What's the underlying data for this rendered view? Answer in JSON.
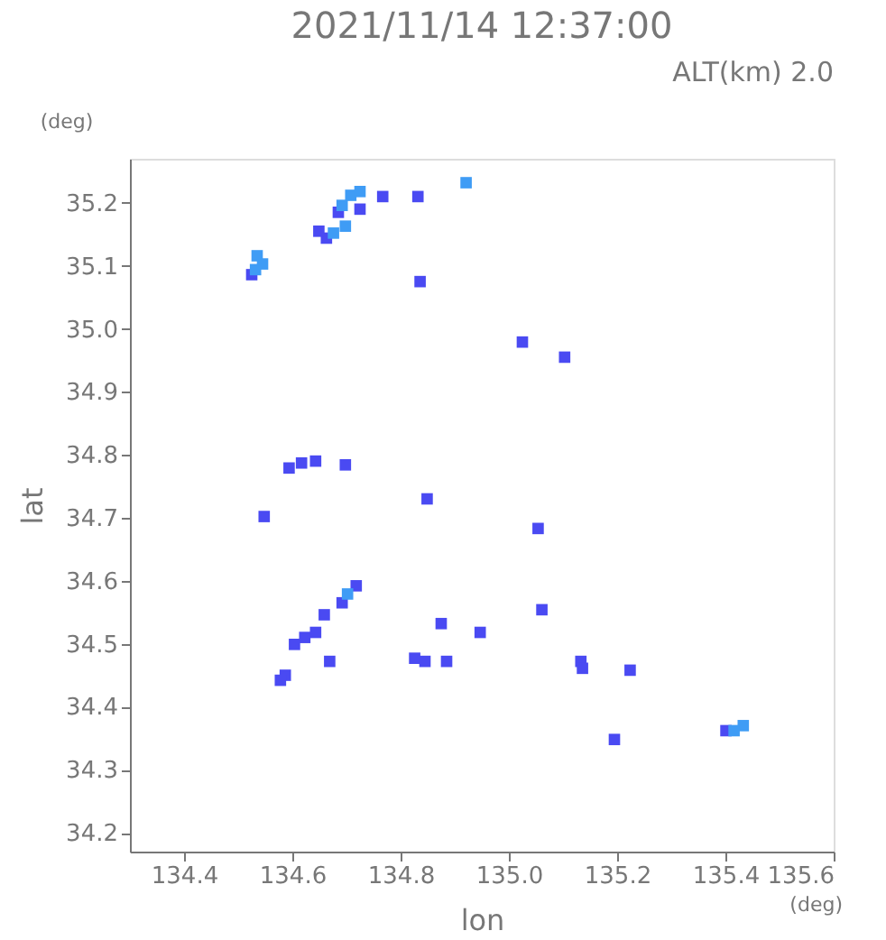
{
  "chart_data": {
    "type": "scatter",
    "title": "2021/11/14 12:37:00",
    "xlabel": "lon",
    "ylabel": "lat",
    "annotations": [
      "ALT(km) 2.0",
      "(deg)",
      "(deg)"
    ],
    "xlim": [
      134.3,
      135.6
    ],
    "xticks": [
      134.4,
      134.6,
      134.8,
      {
        "value": 135,
        "label": "135.0"
      },
      135.2,
      135.4,
      135.6
    ],
    "ylim": [
      34.17,
      35.27
    ],
    "yticks": [
      34.2,
      34.3,
      34.4,
      34.5,
      34.6,
      34.7,
      34.8,
      34.9,
      {
        "value": 35,
        "label": "35.0"
      },
      35.1,
      35.2
    ],
    "grid": false,
    "legend": false,
    "marker": "square",
    "series": [
      {
        "color": "#4a4af2",
        "x": [
          134.685,
          134.725,
          134.663,
          134.649,
          134.525,
          134.767,
          134.832,
          134.836,
          135.025,
          135.103,
          134.594,
          134.617,
          134.643,
          134.698,
          134.548,
          134.849,
          135.054,
          134.692,
          134.718,
          134.659,
          134.623,
          134.604,
          134.643,
          134.669,
          134.587,
          134.578,
          134.826,
          134.845,
          134.885,
          134.947,
          134.875,
          135.061,
          135.133,
          135.136,
          135.224,
          135.195,
          135.401
        ],
        "values": [
          35.185,
          35.19,
          35.144,
          35.155,
          35.086,
          35.21,
          35.21,
          35.075,
          34.979,
          34.955,
          34.779,
          34.787,
          34.79,
          34.784,
          34.702,
          34.73,
          34.683,
          34.565,
          34.592,
          34.546,
          34.51,
          34.499,
          34.518,
          34.472,
          34.45,
          34.442,
          34.477,
          34.472,
          34.472,
          34.518,
          34.532,
          34.554,
          34.472,
          34.461,
          34.458,
          34.348,
          34.362
        ]
      },
      {
        "color": "#3f9cf5",
        "x": [
          134.535,
          134.545,
          134.532,
          134.692,
          134.708,
          134.725,
          134.676,
          134.698,
          134.921,
          135.433,
          135.416,
          134.702
        ],
        "values": [
          35.116,
          35.103,
          35.094,
          35.196,
          35.212,
          35.218,
          35.152,
          35.163,
          35.232,
          34.37,
          34.362,
          34.579
        ]
      }
    ]
  }
}
